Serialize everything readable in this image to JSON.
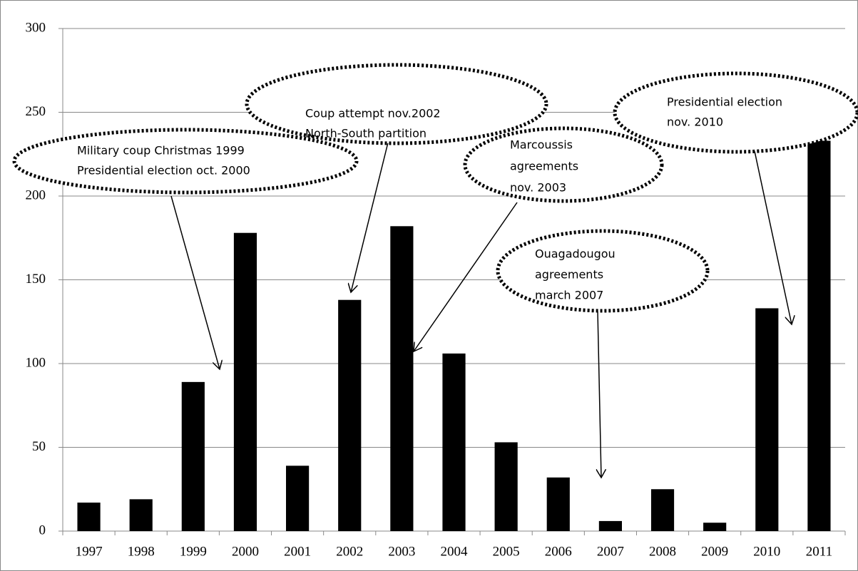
{
  "chart_data": {
    "type": "bar",
    "categories": [
      "1997",
      "1998",
      "1999",
      "2000",
      "2001",
      "2002",
      "2003",
      "2004",
      "2005",
      "2006",
      "2007",
      "2008",
      "2009",
      "2010",
      "2011"
    ],
    "values": [
      17,
      19,
      89,
      178,
      39,
      138,
      182,
      106,
      53,
      32,
      6,
      25,
      5,
      133,
      233
    ],
    "color": "#000000",
    "ylim": [
      0,
      300
    ],
    "yticks": [
      0,
      50,
      100,
      150,
      200,
      250,
      300
    ],
    "grid": true,
    "annotations": [
      {
        "text": [
          "Military coup Christmas 1999",
          "Presidential election  oct. 2000"
        ]
      },
      {
        "text": [
          "Coup attempt  nov.2002",
          "North-South partition"
        ]
      },
      {
        "text": [
          "Marcoussis",
          "agreements",
          "nov. 2003"
        ]
      },
      {
        "text": [
          "Ouagadougou",
          "agreements",
          "march 2007"
        ]
      },
      {
        "text": [
          "Presidential  election",
          "nov. 2010"
        ]
      }
    ]
  }
}
